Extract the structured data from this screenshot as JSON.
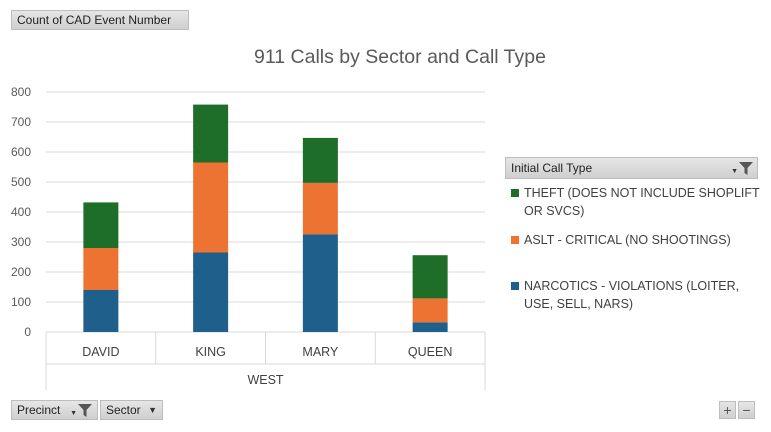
{
  "pivot": {
    "values_field": "Count of CAD Event Number",
    "axis_fields": [
      "Precinct",
      "Sector"
    ],
    "legend_field": "Initial Call Type",
    "zoom_in_label": "+",
    "zoom_out_label": "−"
  },
  "chart_data": {
    "type": "bar",
    "stacked": true,
    "title": "911 Calls by Sector and Call Type",
    "categories": [
      "DAVID",
      "KING",
      "MARY",
      "QUEEN"
    ],
    "category_group": "WEST",
    "ylim": [
      0,
      800
    ],
    "yticks": [
      0,
      100,
      200,
      300,
      400,
      500,
      600,
      700,
      800
    ],
    "grid": true,
    "legend_position": "right",
    "series": [
      {
        "name": "NARCOTICS - VIOLATIONS (LOITER, USE, SELL, NARS)",
        "color": "#1f5f8b",
        "values": [
          140,
          265,
          325,
          32
        ]
      },
      {
        "name": "ASLT - CRITICAL (NO SHOOTINGS)",
        "color": "#ed7333",
        "values": [
          140,
          300,
          172,
          80
        ]
      },
      {
        "name": "THEFT (DOES NOT INCLUDE SHOPLIFT OR SVCS)",
        "color": "#1e6e2a",
        "values": [
          152,
          193,
          150,
          144
        ]
      }
    ]
  }
}
